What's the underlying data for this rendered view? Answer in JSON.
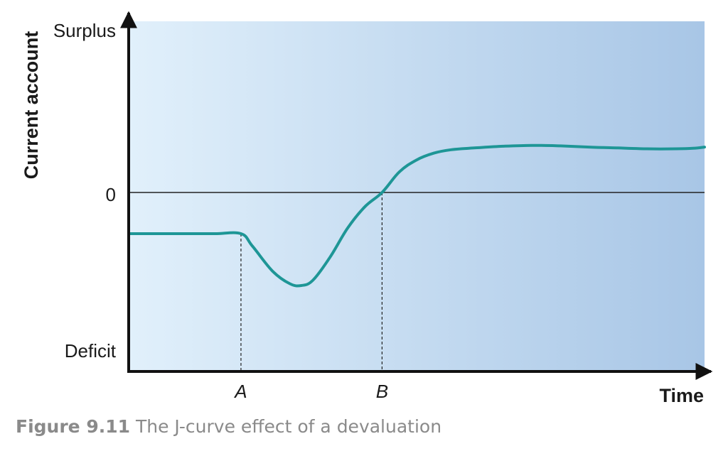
{
  "chart_data": {
    "type": "line",
    "ylabel": "Current account",
    "xlabel": "Time",
    "y_tick_labels": {
      "top": "Surplus",
      "zero": "0",
      "bottom": "Deficit"
    },
    "x_markers": [
      {
        "label": "A",
        "x": 0.195
      },
      {
        "label": "B",
        "x": 0.44
      }
    ],
    "xlim": [
      0,
      1
    ],
    "ylim": [
      -1,
      1
    ],
    "series": [
      {
        "x": [
          0,
          0.05,
          0.1,
          0.15,
          0.195,
          0.215,
          0.25,
          0.28,
          0.3,
          0.32,
          0.35,
          0.38,
          0.41,
          0.44,
          0.47,
          0.5,
          0.53,
          0.56,
          0.6,
          0.65,
          0.7,
          0.75,
          0.8,
          0.85,
          0.9,
          0.95,
          0.98,
          1.0
        ],
        "y": [
          -0.23,
          -0.23,
          -0.23,
          -0.23,
          -0.23,
          -0.3,
          -0.44,
          -0.51,
          -0.52,
          -0.49,
          -0.36,
          -0.2,
          -0.08,
          0.0,
          0.12,
          0.19,
          0.23,
          0.25,
          0.26,
          0.27,
          0.275,
          0.272,
          0.265,
          0.26,
          0.255,
          0.255,
          0.258,
          0.265
        ]
      }
    ],
    "colors": {
      "line": "#1e9696",
      "axis": "#111111",
      "background_left": "#e1f0fb",
      "background_right": "#a8c6e6"
    }
  },
  "caption": {
    "figure_number": "Figure 9.11",
    "text": " The J-curve effect of a devaluation"
  }
}
